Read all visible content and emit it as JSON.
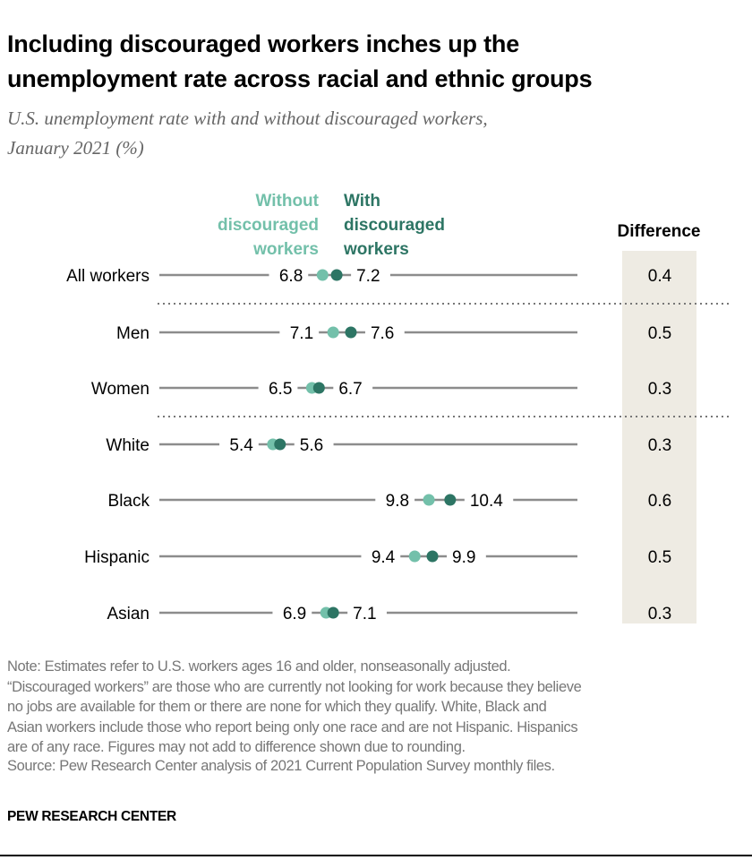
{
  "title": "Including discouraged workers inches up the unemployment rate across racial and ethnic groups",
  "title_lines": [
    "Including discouraged workers inches up the",
    "unemployment rate across racial and ethnic groups"
  ],
  "subtitle_lines": [
    "U.S. unemployment rate with and without discouraged workers,",
    "January 2021 (%)"
  ],
  "notes": {
    "note_lines": [
      "Note: Estimates refer to U.S. workers ages 16 and older, nonseasonally adjusted.",
      "“Discouraged workers” are those who are currently not looking for work because they believe",
      "no jobs are available for them or there are none for which they qualify. White, Black and",
      "Asian workers include those who report being only one race and are not Hispanic. Hispanics",
      "are of any race. Figures may not add to difference shown due to rounding."
    ],
    "source": "Source: Pew Research Center analysis of 2021 Current Population Survey monthly files.",
    "brand": "PEW RESEARCH CENTER"
  },
  "colors": {
    "without": "#73c0aa",
    "with": "#2d7564",
    "line": "#8c8c8c",
    "difference_bg": "#eeebe3"
  },
  "chart_data": {
    "type": "dot",
    "categories": [
      "All workers",
      "Men",
      "Women",
      "White",
      "Black",
      "Hispanic",
      "Asian"
    ],
    "groups_separated_after": [
      "All workers",
      "Women"
    ],
    "series": [
      {
        "name": "Without discouraged workers",
        "legend_lines": [
          "Without",
          "discouraged",
          "workers"
        ],
        "values": [
          6.8,
          7.1,
          6.5,
          5.4,
          9.8,
          9.4,
          6.9
        ]
      },
      {
        "name": "With discouraged workers",
        "legend_lines": [
          "With",
          "discouraged",
          "workers"
        ],
        "values": [
          7.2,
          7.6,
          6.7,
          5.6,
          10.4,
          9.9,
          7.1
        ]
      }
    ],
    "value_labels": [
      [
        "6.8",
        "7.2"
      ],
      [
        "7.1",
        "7.6"
      ],
      [
        "6.5",
        "6.7"
      ],
      [
        "5.4",
        "5.6"
      ],
      [
        "9.8",
        "10.4"
      ],
      [
        "9.4",
        "9.9"
      ],
      [
        "6.9",
        "7.1"
      ]
    ],
    "difference_header": "Difference",
    "difference": [
      "0.4",
      "0.5",
      "0.3",
      "0.3",
      "0.6",
      "0.5",
      "0.3"
    ]
  }
}
